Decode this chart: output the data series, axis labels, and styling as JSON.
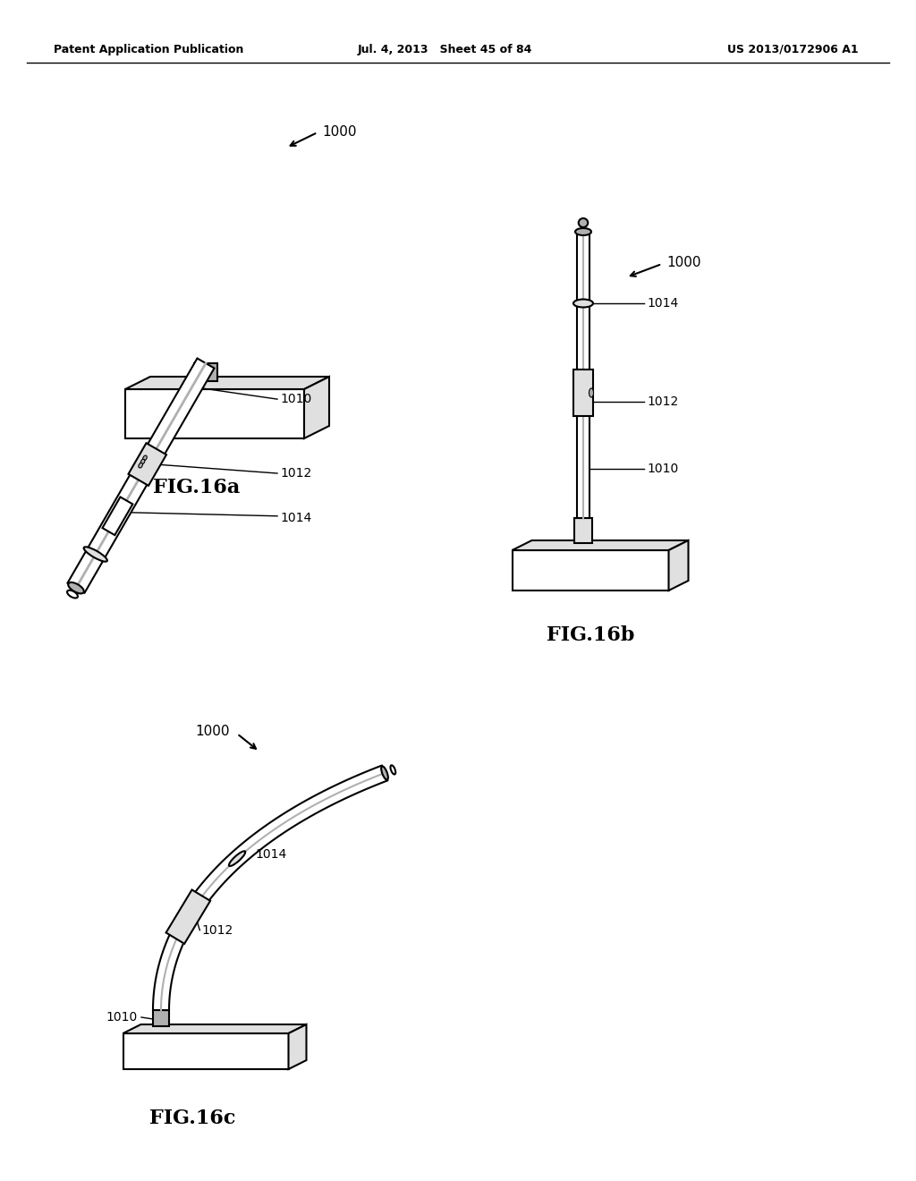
{
  "bg_color": "#ffffff",
  "header_left": "Patent Application Publication",
  "header_mid": "Jul. 4, 2013   Sheet 45 of 84",
  "header_right": "US 2013/0172906 A1",
  "fig16a_label": "FIG.16a",
  "fig16b_label": "FIG.16b",
  "fig16c_label": "FIG.16c",
  "label_1000": "1000",
  "label_1014": "1014",
  "label_1012": "1012",
  "label_1010": "1010",
  "line_color": "#000000",
  "fill_light": "#e0e0e0",
  "fill_mid": "#b0b0b0",
  "fill_dark": "#808080"
}
